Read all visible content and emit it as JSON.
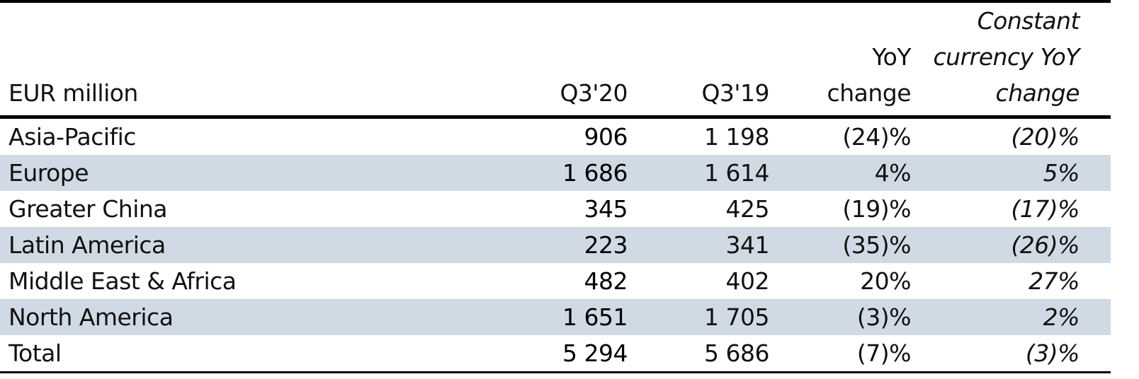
{
  "table": {
    "headers": {
      "label": "EUR million",
      "q320": "Q3'20",
      "q319": "Q3'19",
      "yoy_line1": "YoY",
      "yoy_line2": "change",
      "cc_line1": "Constant",
      "cc_line2": "currency YoY",
      "cc_line3": "change"
    },
    "rows": [
      {
        "label": "Asia-Pacific",
        "q320": "906",
        "q319": "1 198",
        "yoy": "(24)%",
        "cc": "(20)%",
        "shaded": false
      },
      {
        "label": "Europe",
        "q320": "1 686",
        "q319": "1 614",
        "yoy": "4%",
        "cc": "5%",
        "shaded": true
      },
      {
        "label": "Greater China",
        "q320": "345",
        "q319": "425",
        "yoy": "(19)%",
        "cc": "(17)%",
        "shaded": false
      },
      {
        "label": "Latin America",
        "q320": "223",
        "q319": "341",
        "yoy": "(35)%",
        "cc": "(26)%",
        "shaded": true
      },
      {
        "label": "Middle East & Africa",
        "q320": "482",
        "q319": "402",
        "yoy": "20%",
        "cc": "27%",
        "shaded": false
      },
      {
        "label": "North America",
        "q320": "1 651",
        "q319": "1 705",
        "yoy": "(3)%",
        "cc": "2%",
        "shaded": true
      },
      {
        "label": "Total",
        "q320": "5 294",
        "q319": "5 686",
        "yoy": "(7)%",
        "cc": "(3)%",
        "shaded": false
      }
    ],
    "colors": {
      "shade": "#d0dae4",
      "rule": "#000000"
    }
  }
}
